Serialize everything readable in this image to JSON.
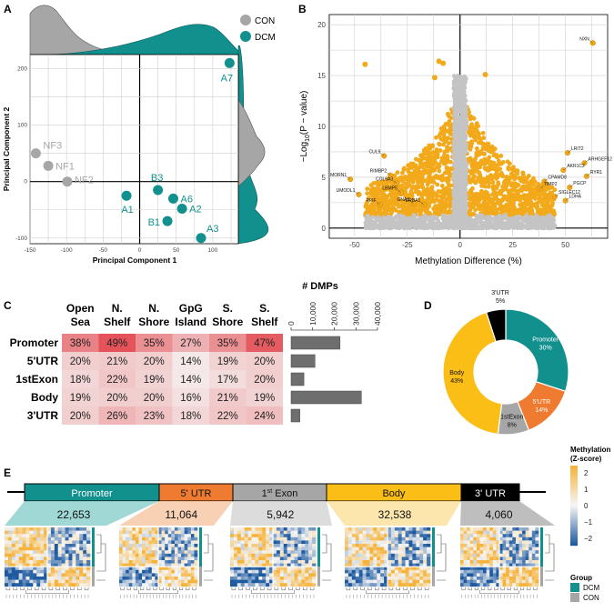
{
  "colors": {
    "con": "#a6a6a6",
    "dcm": "#12908e",
    "volcano_sig": "#f2a91a",
    "volcano_ns": "#c4c4c4",
    "promoter": "#12908e",
    "utr5": "#ee7b30",
    "exon": "#a6a6a6",
    "body": "#fbbe16",
    "utr3": "#000000",
    "heat_low": "#f6f1f0",
    "heat_high": "#e24f55",
    "bar": "#6e6e6e",
    "z_high": "#f6b33b",
    "z_low": "#1e5aa0"
  },
  "panels": {
    "a": "A",
    "b": "B",
    "c": "C",
    "d": "D",
    "e": "E"
  },
  "chart_data": [
    {
      "panel": "A",
      "type": "scatter",
      "xlabel": "Principal Component 1",
      "ylabel": "Principal Component 2",
      "xlim": [
        -150,
        135
      ],
      "ylim": [
        -110,
        225
      ],
      "xticks": [
        "-150",
        "-100",
        "-50",
        "0",
        "50",
        "100"
      ],
      "yticks": [
        "-100",
        "0",
        "100",
        "200"
      ],
      "legend": [
        {
          "name": "CON"
        },
        {
          "name": "DCM"
        }
      ],
      "legend_position": "top-right",
      "series": [
        {
          "name": "CON",
          "points": [
            {
              "label": "NF3",
              "x": -142,
              "y": 50
            },
            {
              "label": "NF1",
              "x": -125,
              "y": 28
            },
            {
              "label": "NF2",
              "x": -99,
              "y": 0
            }
          ]
        },
        {
          "name": "DCM",
          "points": [
            {
              "label": "A7",
              "x": 123,
              "y": 210
            },
            {
              "label": "B3",
              "x": 25,
              "y": -15
            },
            {
              "label": "A6",
              "x": 46,
              "y": -30
            },
            {
              "label": "A1",
              "x": -18,
              "y": -25
            },
            {
              "label": "A2",
              "x": 58,
              "y": -48
            },
            {
              "label": "B1",
              "x": 38,
              "y": -70
            },
            {
              "label": "A3",
              "x": 84,
              "y": -100
            }
          ]
        }
      ]
    },
    {
      "panel": "B",
      "type": "scatter",
      "title": "",
      "xlabel": "Methylation Difference (%)",
      "ylabel_main": "−Log",
      "ylabel_sub": "10",
      "ylabel_tail": "(P − value)",
      "xlim": [
        -62,
        70
      ],
      "ylim": [
        -1,
        21
      ],
      "xticks": [
        "-50",
        "-25",
        "0",
        "25",
        "50",
        "75"
      ],
      "yticks": [
        "0",
        "5",
        "10",
        "15",
        "20"
      ],
      "labeled_points": [
        {
          "label": "NXN",
          "x": 63,
          "y": 18.2
        },
        {
          "label": "LRIT2",
          "x": 51,
          "y": 7.4
        },
        {
          "label": "ARHGEF12",
          "x": 59,
          "y": 6.4
        },
        {
          "label": "AKR1C2",
          "x": 49,
          "y": 5.7
        },
        {
          "label": "RYR1",
          "x": 60,
          "y": 5.1
        },
        {
          "label": "CPAMD8",
          "x": 40,
          "y": 4.6
        },
        {
          "label": "PGCP",
          "x": 52,
          "y": 4.0
        },
        {
          "label": "TIMP2",
          "x": 38,
          "y": 3.9
        },
        {
          "label": "SIGLEC12",
          "x": 45,
          "y": 3.1
        },
        {
          "label": "LDHA",
          "x": 50,
          "y": 2.7
        },
        {
          "label": "CUL9",
          "x": -36,
          "y": 7.1
        },
        {
          "label": "RIMBP2",
          "x": -33,
          "y": 5.2
        },
        {
          "label": "MORN1",
          "x": -52,
          "y": 4.8
        },
        {
          "label": "COL6A3",
          "x": -30,
          "y": 4.4
        },
        {
          "label": "UMODL1",
          "x": -48,
          "y": 3.3
        },
        {
          "label": "LBMP5",
          "x": -28,
          "y": 3.5
        },
        {
          "label": "PPIF",
          "x": -38,
          "y": 2.3
        },
        {
          "label": "GNAS",
          "x": -22,
          "y": 2.4
        },
        {
          "label": "DRBA1",
          "x": -17,
          "y": 2.3
        }
      ]
    },
    {
      "panel": "C",
      "type": "heatmap",
      "columns": [
        "Open Sea",
        "N. Shelf",
        "N. Shore",
        "GpG Island",
        "S. Shore",
        "S. Shelf"
      ],
      "rows": [
        "Promoter",
        "5'UTR",
        "1stExon",
        "Body",
        "3'UTR"
      ],
      "values": [
        [
          38,
          49,
          35,
          27,
          35,
          47
        ],
        [
          20,
          21,
          20,
          14,
          19,
          20
        ],
        [
          18,
          22,
          19,
          14,
          17,
          20
        ],
        [
          19,
          20,
          20,
          16,
          21,
          19
        ],
        [
          20,
          26,
          23,
          18,
          22,
          24
        ]
      ],
      "value_suffix": "%"
    },
    {
      "panel": "C",
      "type": "bar",
      "title": "# DMPs",
      "categories": [
        "Promoter",
        "5'UTR",
        "1stExon",
        "Body",
        "3'UTR"
      ],
      "values": [
        22653,
        11064,
        5942,
        32538,
        4060
      ],
      "xlim": [
        0,
        40000
      ],
      "xticks": [
        "0",
        "10,000",
        "20,000",
        "30,000",
        "40,000"
      ]
    },
    {
      "panel": "D",
      "type": "pie",
      "donut": true,
      "slices": [
        {
          "name": "Promoter",
          "value": 30,
          "label": "30%"
        },
        {
          "name": "5'UTR",
          "value": 14,
          "label": "14%"
        },
        {
          "name": "1stExon",
          "value": 8,
          "label": "8%"
        },
        {
          "name": "Body",
          "value": 43,
          "label": "43%"
        },
        {
          "name": "3'UTR",
          "value": 5,
          "label": "5%"
        }
      ]
    },
    {
      "panel": "E",
      "type": "heatmap",
      "segments": [
        {
          "name": "Promoter",
          "count": "22,653"
        },
        {
          "name": "5' UTR",
          "count": "11,064"
        },
        {
          "name": "1st Exon",
          "count": "5,942"
        },
        {
          "name": "Body",
          "count": "32,538"
        },
        {
          "name": "3' UTR",
          "count": "4,060"
        }
      ],
      "exon_superscript": "st",
      "legend_title": "Methylation",
      "legend_subtitle": "(Z-score)",
      "legend_ticks": [
        "2",
        "1",
        "0",
        "−1",
        "−2"
      ],
      "group_title": "Group",
      "groups": [
        "DCM",
        "CON"
      ]
    }
  ]
}
